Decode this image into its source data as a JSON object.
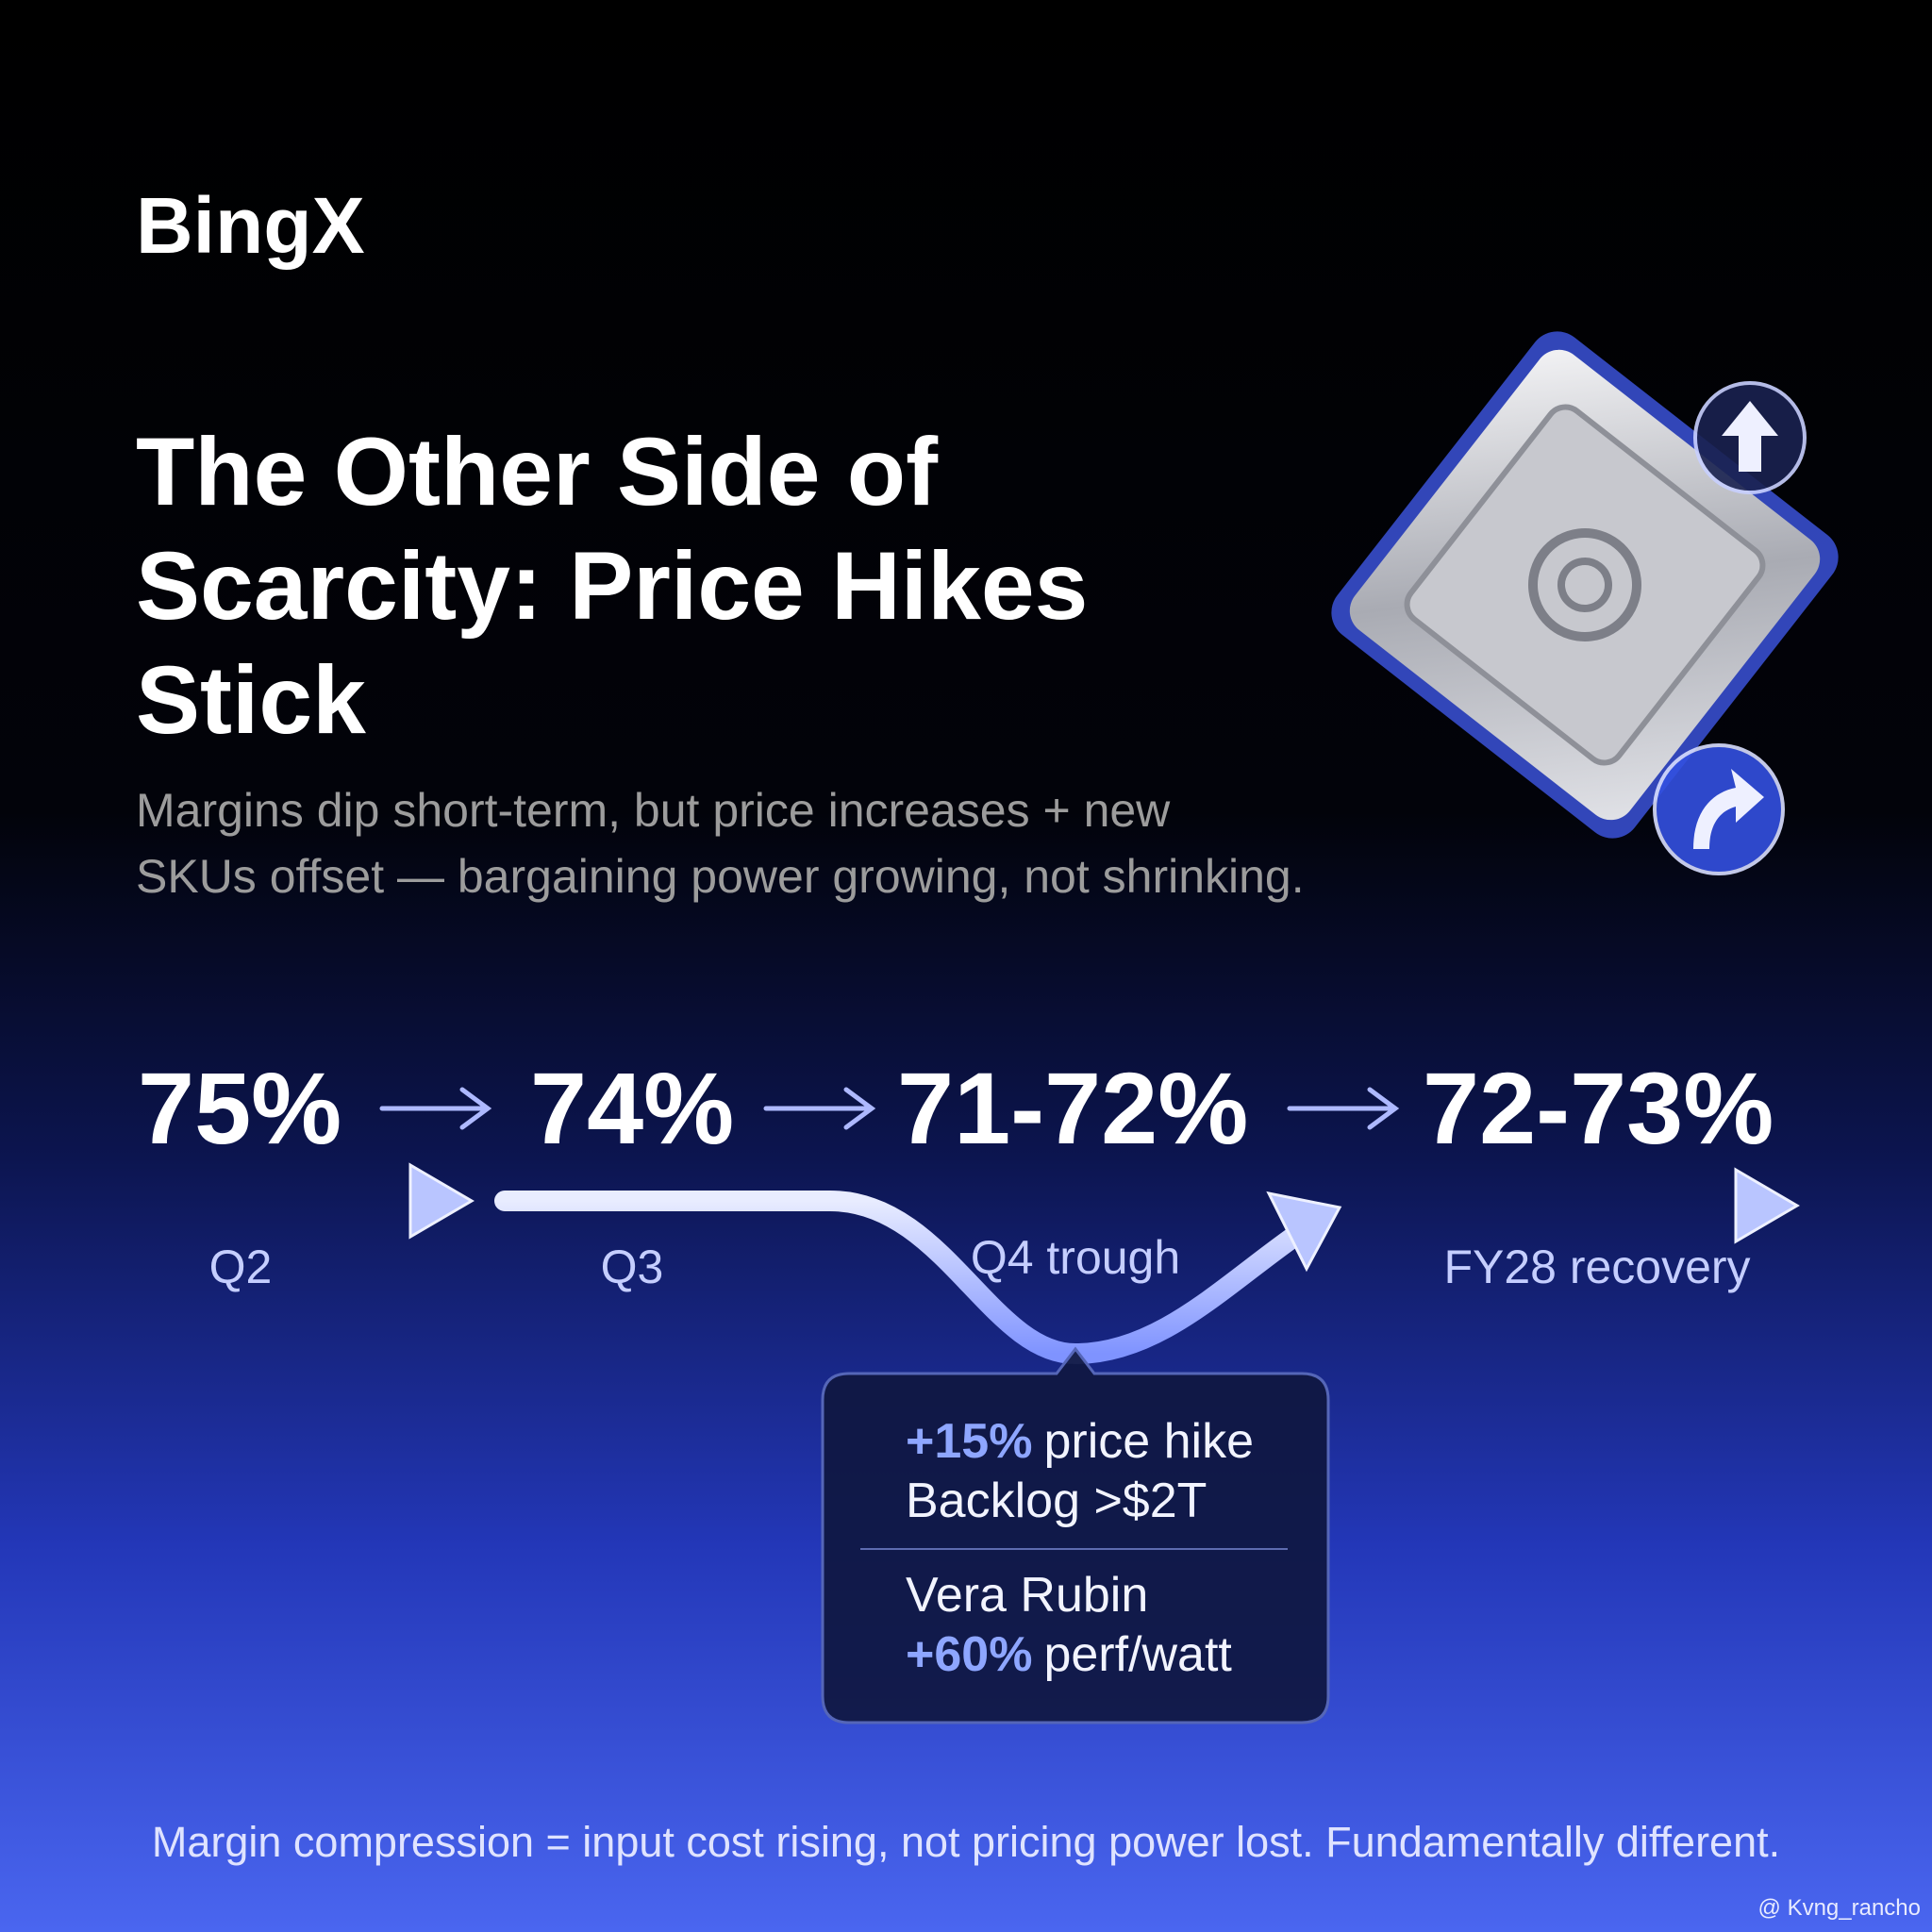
{
  "brand": "BingX",
  "title": {
    "lines": [
      "The Other Side of",
      "Scarcity: Price Hikes",
      "Stick"
    ]
  },
  "subtitle": {
    "lines": [
      "Margins dip short-term, but price increases + new",
      "SKUs offset — bargaining power growing, not shrinking."
    ]
  },
  "steps": [
    {
      "value": "75%",
      "label": "Q2"
    },
    {
      "value": "74%",
      "label": "Q3"
    },
    {
      "value": "71-72%",
      "label": "Q4 trough"
    },
    {
      "value": "72-73%",
      "label": "FY28 recovery"
    }
  ],
  "callout": {
    "top": [
      {
        "highlight": "+15%",
        "text": "price hike"
      },
      {
        "text": "Backlog >$2T"
      }
    ],
    "bottom": [
      {
        "text": "Vera Rubin"
      },
      {
        "highlight": "+60%",
        "text": "perf/watt"
      }
    ]
  },
  "footer": "Margin compression = input cost rising, not pricing power lost. Fundamentally different.",
  "watermark": "@ Kvng_rancho"
}
